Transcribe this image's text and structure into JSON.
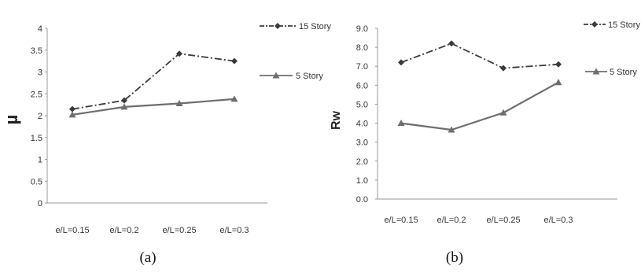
{
  "captions": [
    "(a)",
    "(b)"
  ],
  "chart_data": [
    {
      "type": "line",
      "categories": [
        "e/L=0.15",
        "e/L=0.2",
        "e/L=0.25",
        "e/L=0.3"
      ],
      "ylabel": "µ",
      "ylim": [
        0,
        4
      ],
      "yticks": [
        "0",
        "0.5",
        "1",
        "1.5",
        "2",
        "2.5",
        "3",
        "3.5",
        "4"
      ],
      "grid": false,
      "legend_position": "top-right",
      "series": [
        {
          "name": "15 Story",
          "values": [
            2.15,
            2.35,
            3.42,
            3.25
          ],
          "style": "dashdot",
          "marker": "diamond",
          "color": "#3a3a3a"
        },
        {
          "name": "5 Story",
          "values": [
            2.02,
            2.2,
            2.28,
            2.38
          ],
          "style": "solid",
          "marker": "triangle",
          "color": "#6e6e6e"
        }
      ]
    },
    {
      "type": "line",
      "categories": [
        "e/L=0.15",
        "e/L=0.2",
        "e/L=0.25",
        "e/L=0.3"
      ],
      "ylabel": "Rw",
      "ylim": [
        0,
        9
      ],
      "yticks": [
        "0.0",
        "1.0",
        "2.0",
        "3.0",
        "4.0",
        "5.0",
        "6.0",
        "7.0",
        "8.0",
        "9.0"
      ],
      "grid": false,
      "legend_position": "top-right",
      "series": [
        {
          "name": "15 Story",
          "values": [
            7.2,
            8.2,
            6.9,
            7.1
          ],
          "style": "dashdot",
          "marker": "diamond",
          "color": "#3a3a3a"
        },
        {
          "name": "5 Story",
          "values": [
            4.0,
            3.65,
            4.55,
            6.15
          ],
          "style": "solid",
          "marker": "triangle",
          "color": "#6e6e6e"
        }
      ]
    }
  ]
}
